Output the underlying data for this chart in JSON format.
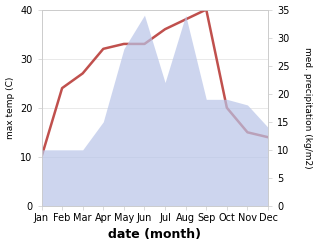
{
  "months": [
    "Jan",
    "Feb",
    "Mar",
    "Apr",
    "May",
    "Jun",
    "Jul",
    "Aug",
    "Sep",
    "Oct",
    "Nov",
    "Dec"
  ],
  "temperature": [
    10,
    24,
    27,
    32,
    33,
    33,
    36,
    38,
    40,
    20,
    15,
    14
  ],
  "precipitation": [
    10,
    10,
    10,
    15,
    28,
    34,
    22,
    34,
    19,
    19,
    18,
    14
  ],
  "temp_color": "#c0504d",
  "precip_color": "#b8c4e8",
  "temp_ylim": [
    0,
    40
  ],
  "precip_ylim": [
    0,
    35
  ],
  "xlabel": "date (month)",
  "ylabel_left": "max temp (C)",
  "ylabel_right": "med. precipitation (kg/m2)",
  "bg_color": "#ffffff",
  "grid_color": "#e0e0e0",
  "tick_fontsize": 7,
  "label_fontsize": 8,
  "xlabel_fontsize": 9
}
